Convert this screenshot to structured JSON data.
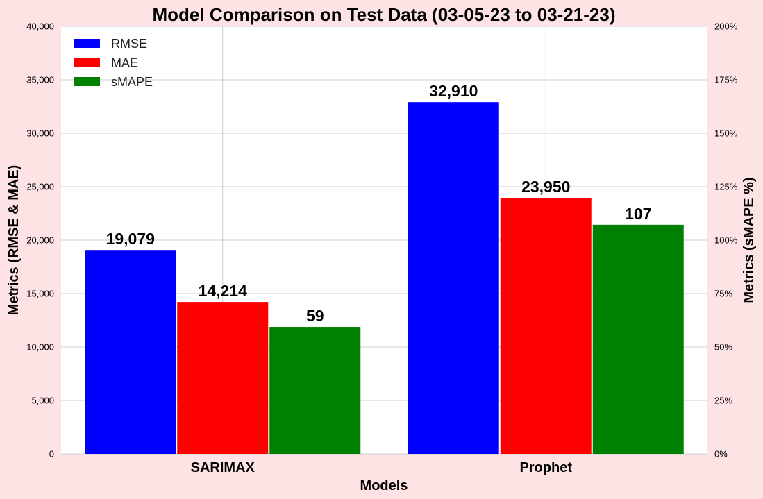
{
  "chart_data": {
    "type": "bar",
    "title": "Model Comparison on Test Data (03-05-23 to 03-21-23)",
    "xlabel": "Models",
    "ylabel": "Metrics (RMSE & MAE)",
    "y2label": "Metrics (sMAPE %)",
    "categories": [
      "SARIMAX",
      "Prophet"
    ],
    "ylim": [
      0,
      40000
    ],
    "y2lim": [
      0,
      200
    ],
    "yticks": [
      "0",
      "5,000",
      "10,000",
      "15,000",
      "20,000",
      "25,000",
      "30,000",
      "35,000",
      "40,000"
    ],
    "y2ticks": [
      "0%",
      "25%",
      "50%",
      "75%",
      "100%",
      "125%",
      "150%",
      "175%",
      "200%"
    ],
    "grid": true,
    "legend_position": "top-left",
    "series": [
      {
        "name": "RMSE",
        "axis": "left",
        "color": "#0000ff",
        "values": [
          19079,
          32910
        ],
        "labels": [
          "19,079",
          "32,910"
        ]
      },
      {
        "name": "MAE",
        "axis": "left",
        "color": "#ff0000",
        "values": [
          14214,
          23950
        ],
        "labels": [
          "14,214",
          "23,950"
        ]
      },
      {
        "name": "sMAPE",
        "axis": "right",
        "color": "#008000",
        "values": [
          59.4,
          107.2
        ],
        "labels": [
          "59",
          "107"
        ]
      }
    ]
  }
}
